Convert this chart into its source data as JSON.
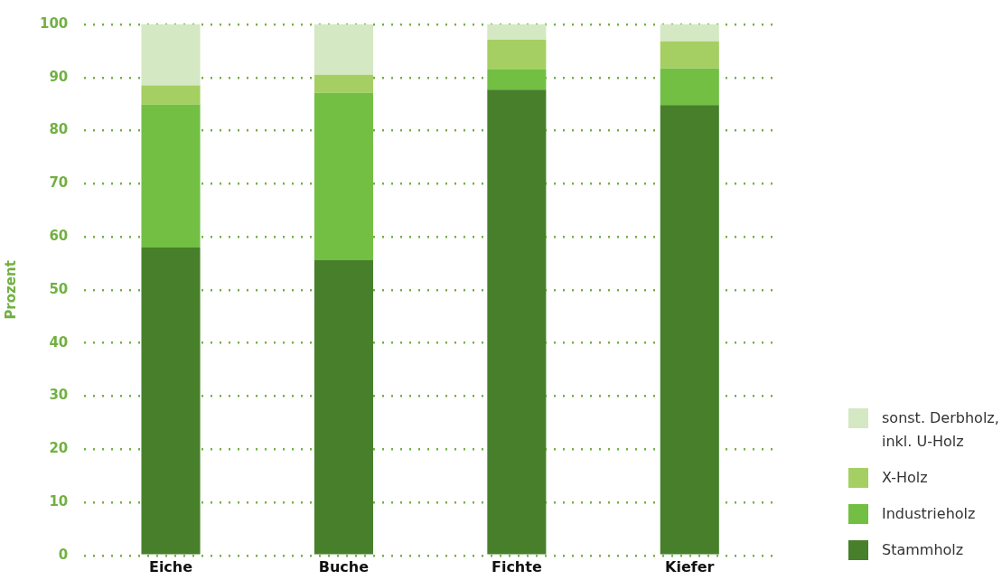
{
  "chart_data": {
    "type": "bar",
    "stacked": true,
    "ylabel": "Prozent",
    "categories": [
      "Eiche",
      "Buche",
      "Fichte",
      "Kiefer"
    ],
    "series": [
      {
        "name": "Stammholz",
        "color": "#477f2b",
        "values": [
          58,
          55.6,
          87.7,
          84.8
        ]
      },
      {
        "name": "Industrieholz",
        "color": "#72bf44",
        "values": [
          26.9,
          31.5,
          3.8,
          6.9
        ]
      },
      {
        "name": "X-Holz",
        "color": "#a5cf62",
        "values": [
          3.6,
          3.4,
          5.6,
          5.1
        ]
      },
      {
        "name": "sonst. Derbholz, inkl. U-Holz",
        "color": "#d4e8c3",
        "values": [
          11.5,
          9.5,
          2.9,
          3.2
        ]
      }
    ],
    "ylim": [
      0,
      100
    ],
    "yticks": [
      0,
      10,
      20,
      30,
      40,
      50,
      60,
      70,
      80,
      90,
      100
    ],
    "grid": "y",
    "legend": "bottom right"
  }
}
